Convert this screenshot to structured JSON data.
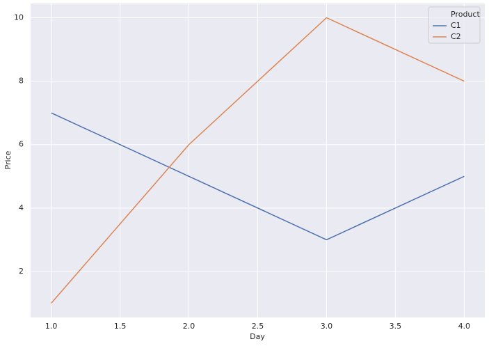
{
  "chart_data": {
    "type": "line",
    "x_label": "Day",
    "y_label": "Price",
    "x": [
      1,
      2,
      3,
      4
    ],
    "series": [
      {
        "name": "C1",
        "color": "#4c72b0",
        "values": [
          7,
          5,
          3,
          5
        ]
      },
      {
        "name": "C2",
        "color": "#dd8452",
        "values": [
          1,
          6,
          10,
          8
        ]
      }
    ],
    "legend_title": "Product",
    "legend": "upper right",
    "xlim": [
      0.85,
      4.15
    ],
    "xticks": [
      {
        "value": 1,
        "label": "1.0"
      },
      {
        "value": 1.5,
        "label": "1.5"
      },
      {
        "value": 2,
        "label": "2.0"
      },
      {
        "value": 2.5,
        "label": "2.5"
      },
      {
        "value": 3,
        "label": "3.0"
      },
      {
        "value": 3.5,
        "label": "3.5"
      },
      {
        "value": 4,
        "label": "4.0"
      }
    ],
    "ylim": [
      0.55,
      10.45
    ],
    "yticks": [
      2,
      4,
      6,
      8,
      10
    ],
    "grid": true
  }
}
